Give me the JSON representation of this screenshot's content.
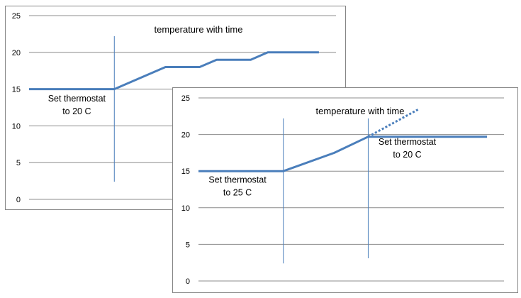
{
  "chart_data": [
    {
      "type": "line",
      "title": "temperature with time",
      "xlabel": "",
      "ylabel": "",
      "ylim": [
        0,
        25
      ],
      "y_ticks": [
        0,
        5,
        10,
        15,
        20,
        25
      ],
      "xlim": [
        0,
        18
      ],
      "grid": true,
      "line_color": "#4a7ebb",
      "marker_color": "#4a7ebb",
      "series": [
        {
          "style": "solid",
          "points": [
            [
              0,
              15
            ],
            [
              5,
              15
            ],
            [
              6,
              16
            ],
            [
              8,
              18
            ],
            [
              10,
              18
            ],
            [
              11,
              19
            ],
            [
              13,
              19
            ],
            [
              14,
              20
            ],
            [
              17,
              20
            ]
          ]
        }
      ],
      "markers": [
        {
          "x": 5,
          "y_top": 22.2,
          "y_bottom": 2.4
        }
      ],
      "annotations": [
        {
          "lines": [
            "Set thermostat",
            "to 20 C"
          ],
          "x": 2.8,
          "y": 13.3
        }
      ]
    },
    {
      "type": "line",
      "title": "temperature with time",
      "xlabel": "",
      "ylabel": "",
      "ylim": [
        0,
        25
      ],
      "y_ticks": [
        0,
        5,
        10,
        15,
        20,
        25
      ],
      "xlim": [
        0,
        18
      ],
      "grid": true,
      "line_color": "#4a7ebb",
      "marker_color": "#4a7ebb",
      "series": [
        {
          "style": "solid",
          "points": [
            [
              0,
              15
            ],
            [
              5,
              15
            ],
            [
              8,
              17.5
            ],
            [
              10,
              19.7
            ],
            [
              17,
              19.7
            ]
          ]
        },
        {
          "style": "dotted",
          "points": [
            [
              10,
              19.7
            ],
            [
              13,
              23.5
            ]
          ]
        }
      ],
      "markers": [
        {
          "x": 5,
          "y_top": 22.2,
          "y_bottom": 2.4
        },
        {
          "x": 10,
          "y_top": 22.2,
          "y_bottom": 3.1
        }
      ],
      "annotations": [
        {
          "lines": [
            "Set thermostat",
            "to 25 C"
          ],
          "x": 2.3,
          "y": 13.4
        },
        {
          "lines": [
            "Set thermostat",
            "to 20 C"
          ],
          "x": 12.3,
          "y": 18.6
        }
      ]
    }
  ]
}
